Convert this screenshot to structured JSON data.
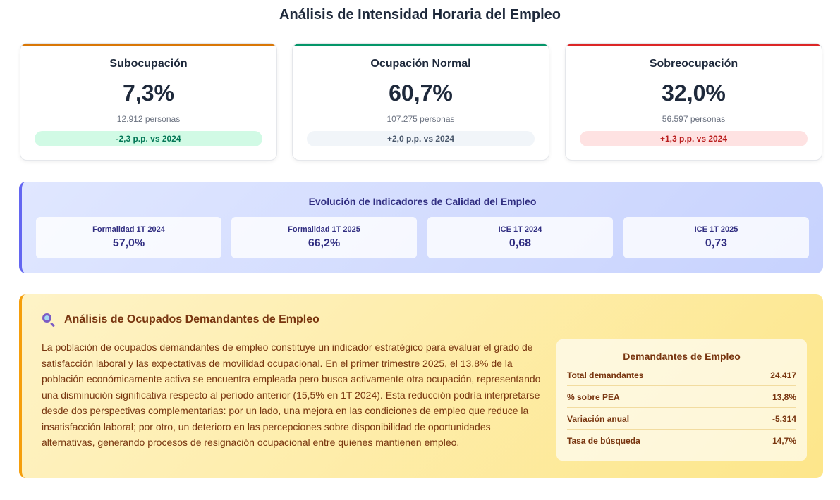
{
  "title": "Análisis de Intensidad Horaria del Empleo",
  "cards": [
    {
      "title": "Subocupación",
      "value": "7,3%",
      "people": "12.912 personas",
      "change": "-2,3 p.p. vs 2024",
      "accent": "#d97706",
      "badge_bg": "#d1fae5",
      "badge_fg": "#047857"
    },
    {
      "title": "Ocupación Normal",
      "value": "60,7%",
      "people": "107.275 personas",
      "change": "+2,0 p.p. vs 2024",
      "accent": "#059669",
      "badge_bg": "#f1f5f9",
      "badge_fg": "#475569"
    },
    {
      "title": "Sobreocupación",
      "value": "32,0%",
      "people": "56.597 personas",
      "change": "+1,3 p.p. vs 2024",
      "accent": "#dc2626",
      "badge_bg": "#fee2e2",
      "badge_fg": "#b91c1c"
    }
  ],
  "quality": {
    "title": "Evolución de Indicadores de Calidad del Empleo",
    "items": [
      {
        "label": "Formalidad 1T 2024",
        "value": "57,0%"
      },
      {
        "label": "Formalidad 1T 2025",
        "value": "66,2%"
      },
      {
        "label": "ICE 1T 2024",
        "value": "0,68"
      },
      {
        "label": "ICE 1T 2025",
        "value": "0,73"
      }
    ]
  },
  "demand": {
    "icon": "magnifying-glass-icon",
    "title": "Análisis de Ocupados Demandantes de Empleo",
    "text": "La población de ocupados demandantes de empleo constituye un indicador estratégico para evaluar el grado de satisfacción laboral y las expectativas de movilidad ocupacional. En el primer trimestre 2025, el 13,8% de la población económicamente activa se encuentra empleada pero busca activamente otra ocupación, representando una disminución significativa respecto al período anterior (15,5% en 1T 2024). Esta reducción podría interpretarse desde dos perspectivas complementarias: por un lado, una mejora en las condiciones de empleo que reduce la insatisfacción laboral; por otro, un deterioro en las percepciones sobre disponibilidad de oportunidades alternativas, generando procesos de resignación ocupacional entre quienes mantienen empleo.",
    "summary": {
      "title": "Demandantes de Empleo",
      "rows": [
        {
          "label": "Total demandantes",
          "value": "24.417"
        },
        {
          "label": "% sobre PEA",
          "value": "13,8%"
        },
        {
          "label": "Variación anual",
          "value": "-5.314"
        },
        {
          "label": "Tasa de búsqueda",
          "value": "14,7%"
        }
      ]
    }
  }
}
